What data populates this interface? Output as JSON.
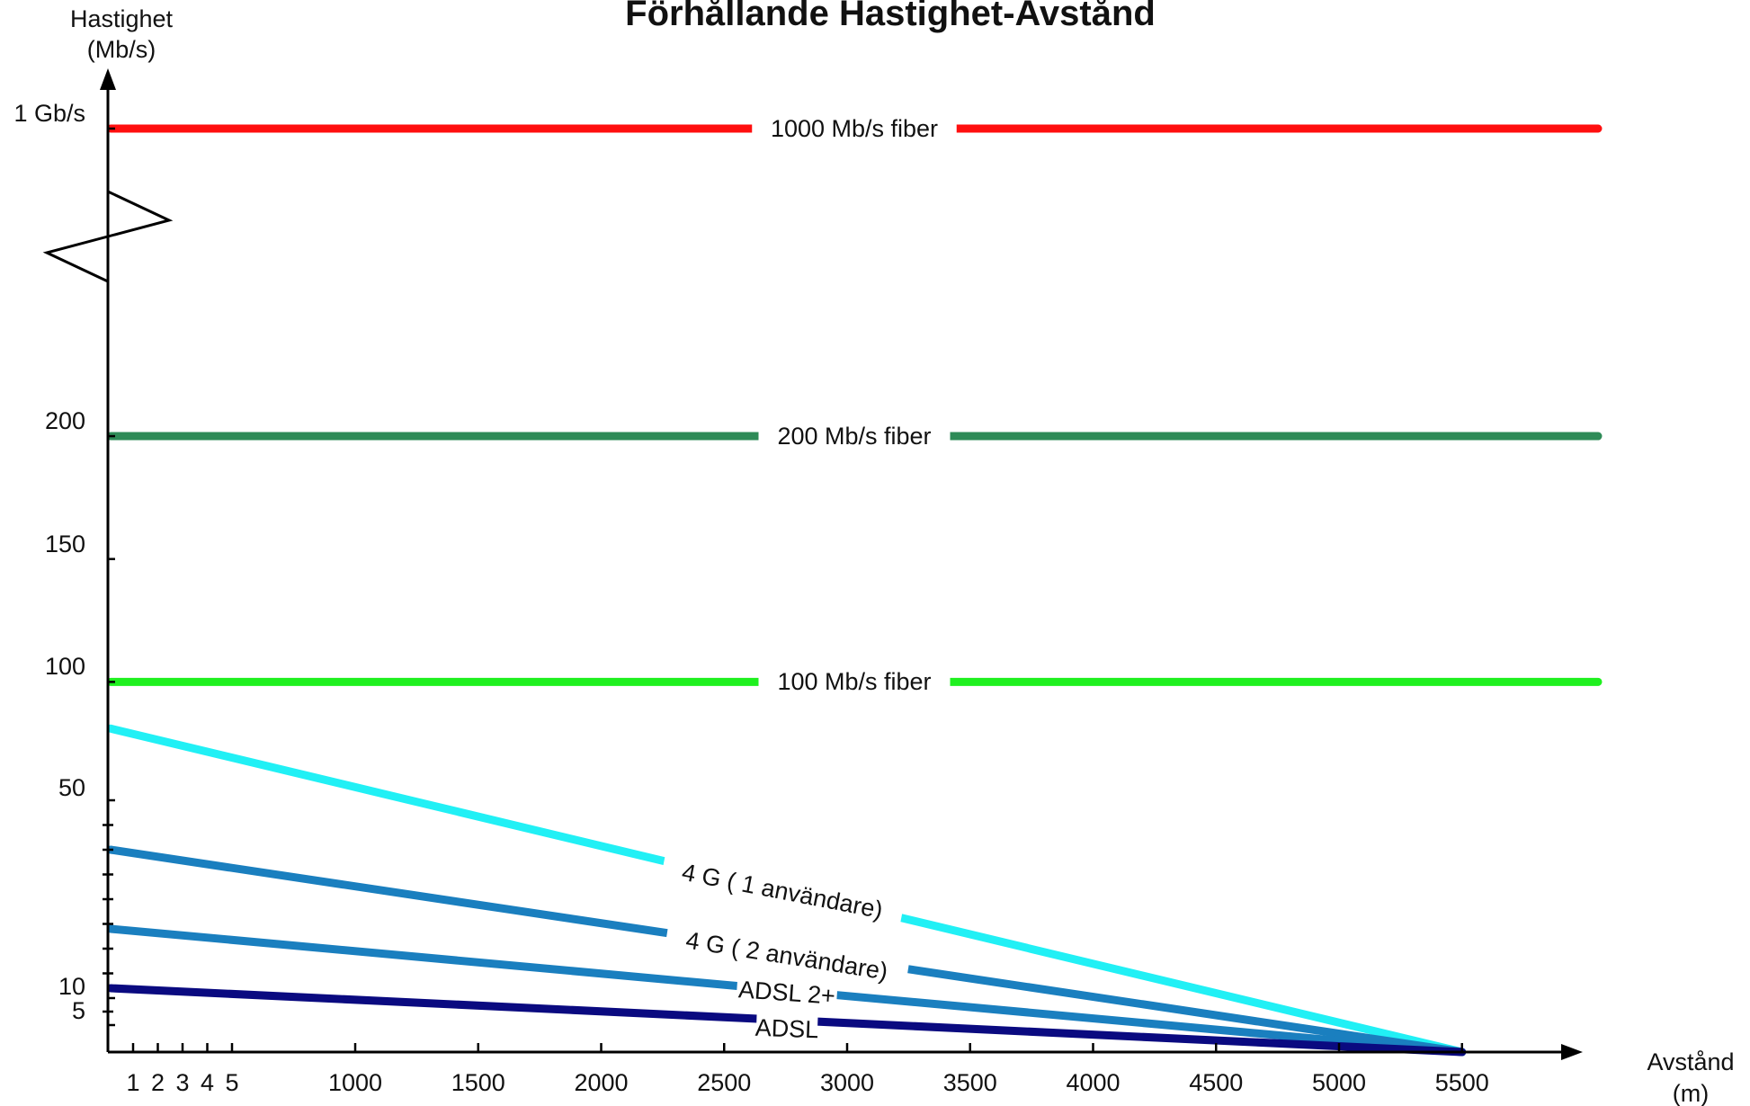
{
  "chart_data": {
    "type": "line",
    "title": "Förhållande Hastighet-Avstånd",
    "ylabel": [
      "Hastighet",
      "(Mb/s)"
    ],
    "xlabel": [
      "Avstånd",
      "(m)"
    ],
    "x_ticks": [
      1,
      2,
      3,
      4,
      5,
      1000,
      1500,
      2000,
      2500,
      3000,
      3500,
      4000,
      4500,
      5000,
      5500
    ],
    "x_tick_labels": [
      "1",
      "2",
      "3",
      "4",
      "5",
      "1000",
      "1500",
      "2000",
      "2500",
      "3000",
      "3500",
      "4000",
      "4500",
      "5000",
      "5500"
    ],
    "y_ticks": [
      5,
      10,
      50,
      100,
      150,
      200,
      1000
    ],
    "y_tick_labels": [
      "5",
      "10",
      "50",
      "100",
      "150",
      "200",
      "1 Gb/s"
    ],
    "y_axis_break": true,
    "grid": false,
    "series": [
      {
        "name": "1000 Mb/s fiber",
        "color": "#ff0f0f",
        "x": [
          0,
          6000
        ],
        "y": [
          1000,
          1000
        ]
      },
      {
        "name": "200 Mb/s fiber",
        "color": "#2e8b57",
        "x": [
          0,
          6000
        ],
        "y": [
          200,
          200
        ]
      },
      {
        "name": "100 Mb/s fiber",
        "color": "#1ff01f",
        "x": [
          0,
          6000
        ],
        "y": [
          100,
          100
        ]
      },
      {
        "name": "4 G ( 1 användare)",
        "color": "#21f0f5",
        "x": [
          0,
          5500
        ],
        "y": [
          81,
          0
        ]
      },
      {
        "name": "4 G ( 2 användare)",
        "color": "#1a7fbf",
        "x": [
          0,
          5500
        ],
        "y": [
          40,
          0
        ]
      },
      {
        "name": "ADSL 2+",
        "color": "#1a7fbf",
        "x": [
          0,
          5500
        ],
        "y": [
          24,
          0
        ]
      },
      {
        "name": "ADSL",
        "color": "#0a0a80",
        "x": [
          0,
          5500
        ],
        "y": [
          12,
          0
        ]
      }
    ]
  }
}
